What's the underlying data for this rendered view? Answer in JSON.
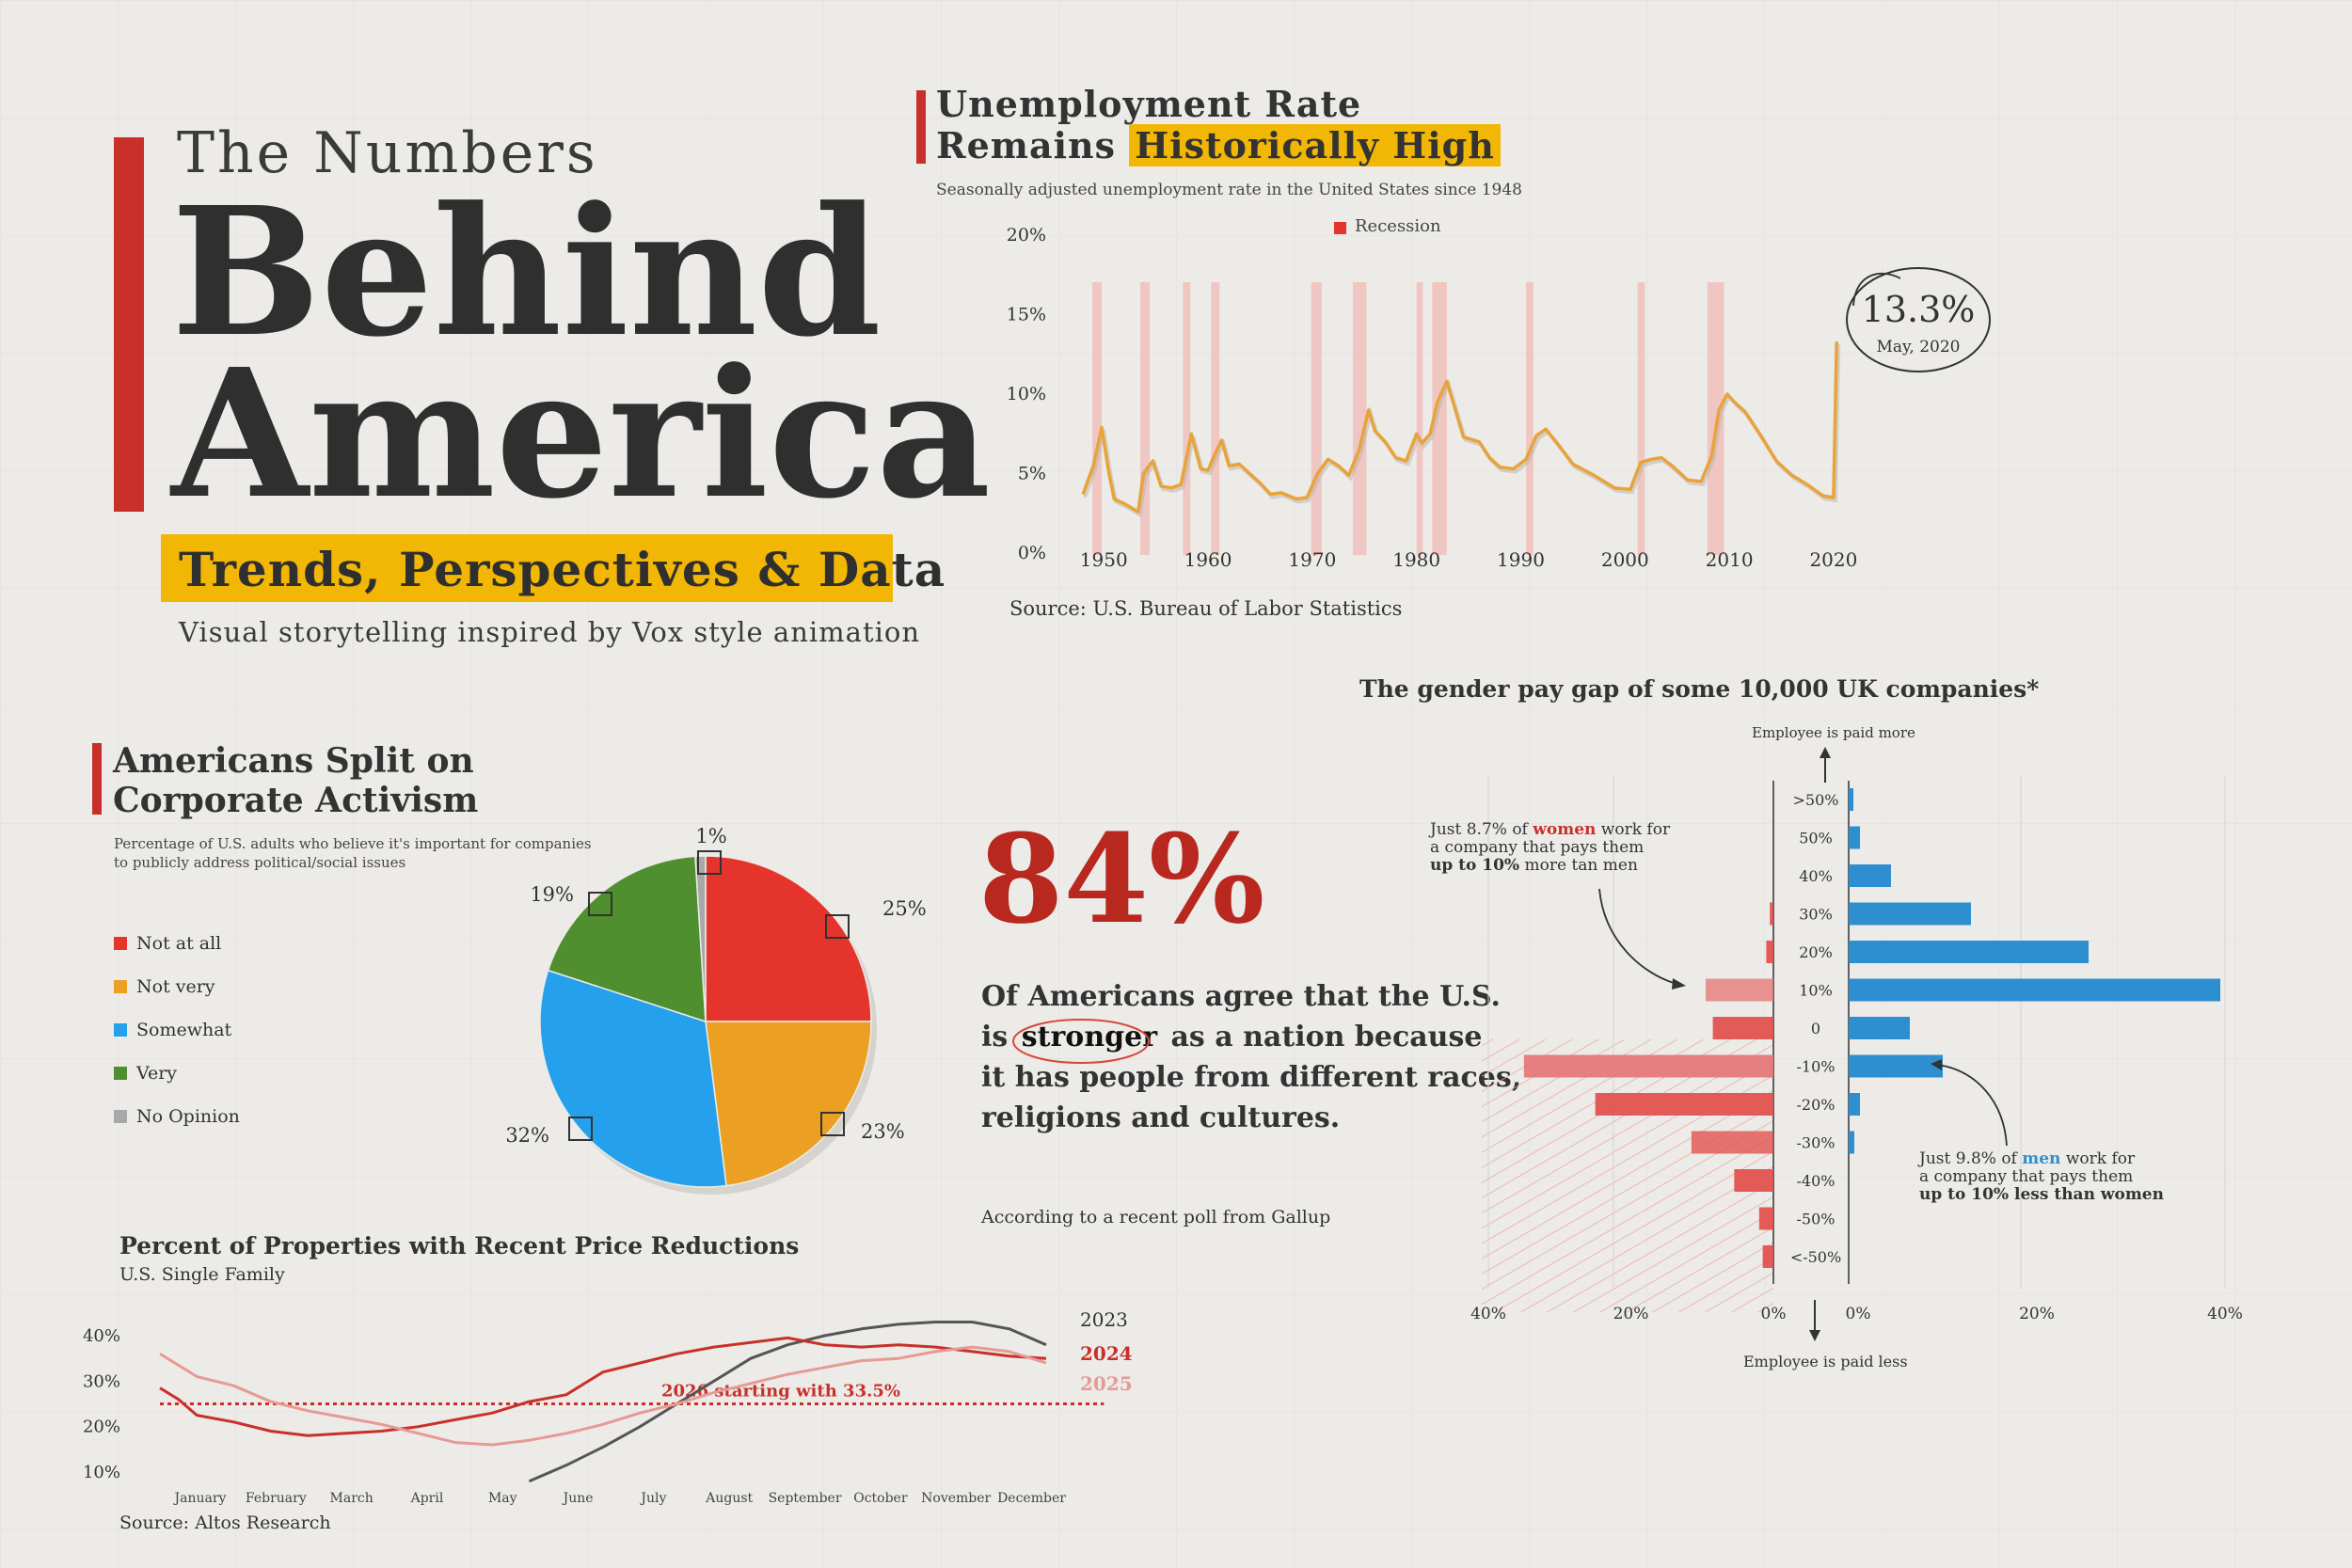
{
  "header": {
    "kicker": "The Numbers",
    "title_line1": "Behind",
    "title_line2": "America",
    "subtitle": "Trends, Perspectives & Data",
    "tagline": "Visual storytelling inspired by Vox style animation"
  },
  "colors": {
    "accent_red": "#c8302a",
    "highlight_yellow": "#f2b705",
    "line_orange": "#e8a33a",
    "recession_pink": "#f0b9b6",
    "blue": "#2e8fd0"
  },
  "unemployment": {
    "title_line1": "Unemployment Rate",
    "title_line2_plain": "Remains",
    "title_line2_highlight": "Historically High",
    "subtitle": "Seasonally adjusted unemployment rate in the United States since 1948",
    "legend": "Recession",
    "source": "Source: U.S. Bureau of Labor Statistics",
    "annotation_value": "13.3%",
    "annotation_label": "May, 2020"
  },
  "activism": {
    "title_line1": "Americans Split on",
    "title_line2": "Corporate Activism",
    "subtitle_line1": "Percentage of U.S. adults who believe it's important for companies",
    "subtitle_line2": "to publicly address political/social issues"
  },
  "stat": {
    "big": "84%",
    "line1": "Of Americans agree that the U.S.",
    "line2_pre": "is",
    "line2_emph": "stronger",
    "line2_post": "as a nation because",
    "line3": "it has people from different races,",
    "line4": "religions and cultures.",
    "source": "According to a recent poll from Gallup"
  },
  "paygap": {
    "title": "The gender pay gap of some 10,000 UK companies*",
    "top_label": "Employee is paid more",
    "bottom_label": "Employee is paid less",
    "note_women_1_pre": "Just 8.7% of",
    "note_women_1_em": "women",
    "note_women_1_post": "work for",
    "note_women_2": "a company that pays them",
    "note_women_3_b": "up to 10%",
    "note_women_3_post": "more tan men",
    "note_men_1_pre": "Just 9.8% of",
    "note_men_1_em": "men",
    "note_men_1_post": "work for",
    "note_men_2": "a company that pays them",
    "note_men_3": "up to 10% less than women"
  },
  "prices": {
    "title": "Percent of Properties with Recent Price Reductions",
    "subtitle": "U.S. Single Family",
    "annotation": "2026 starting with 33.5%",
    "source": "Source: Altos Research"
  },
  "chart_data": [
    {
      "id": "unemployment",
      "type": "line",
      "title": "Unemployment Rate Remains Historically High",
      "ylim": [
        0,
        20
      ],
      "xlim": [
        1947,
        2021
      ],
      "y_ticks": [
        0,
        5,
        10,
        15,
        20
      ],
      "y_tick_labels": [
        "0%",
        "5%",
        "10%",
        "15%",
        "20%"
      ],
      "x_ticks": [
        1950,
        1960,
        1970,
        1980,
        1990,
        2000,
        2010,
        2020
      ],
      "x_tick_labels": [
        "1950",
        "1960",
        "1970",
        "1980",
        "1990",
        "2000",
        "2010",
        "2020"
      ],
      "recessions": [
        [
          1948.9,
          1949.8
        ],
        [
          1953.5,
          1954.4
        ],
        [
          1957.6,
          1958.3
        ],
        [
          1960.3,
          1961.1
        ],
        [
          1969.9,
          1970.9
        ],
        [
          1973.9,
          1975.2
        ],
        [
          1980.0,
          1980.6
        ],
        [
          1981.5,
          1982.9
        ],
        [
          1990.5,
          1991.2
        ],
        [
          2001.2,
          2001.9
        ],
        [
          2007.9,
          2009.5
        ]
      ],
      "series": [
        {
          "name": "Unemployment rate",
          "x": [
            1948,
            1949,
            1949.8,
            1950.5,
            1951,
            1952,
            1953.3,
            1953.8,
            1954.7,
            1955.5,
            1956.5,
            1957.4,
            1958.4,
            1959.3,
            1960,
            1960.5,
            1961.3,
            1962,
            1963,
            1964,
            1965,
            1966,
            1967,
            1968.5,
            1969.5,
            1970.5,
            1971.5,
            1972.5,
            1973.5,
            1974.5,
            1975.4,
            1976,
            1977,
            1978,
            1979,
            1980,
            1980.5,
            1981.3,
            1982,
            1982.9,
            1983.5,
            1984.5,
            1986,
            1987,
            1988,
            1989.3,
            1990.5,
            1991.5,
            1992.4,
            1993.5,
            1995,
            1997,
            1999,
            2000.5,
            2001.5,
            2002.5,
            2003.5,
            2004.5,
            2006,
            2007.3,
            2008.3,
            2009,
            2009.8,
            2010.5,
            2011.5,
            2013,
            2014.5,
            2016,
            2017.5,
            2019,
            2020,
            2020.3
          ],
          "values": [
            3.7,
            5.5,
            7.9,
            5.0,
            3.4,
            3.1,
            2.6,
            5.0,
            5.8,
            4.2,
            4.1,
            4.3,
            7.5,
            5.3,
            5.2,
            6.0,
            7.1,
            5.5,
            5.6,
            5.0,
            4.4,
            3.7,
            3.8,
            3.4,
            3.5,
            5.0,
            5.9,
            5.5,
            4.9,
            6.5,
            9.0,
            7.7,
            7.0,
            6.0,
            5.8,
            7.5,
            6.9,
            7.5,
            9.5,
            10.8,
            9.5,
            7.3,
            7.0,
            6.0,
            5.4,
            5.3,
            5.9,
            7.4,
            7.8,
            6.9,
            5.6,
            4.9,
            4.1,
            4.0,
            5.7,
            5.9,
            6.0,
            5.5,
            4.6,
            4.5,
            6.1,
            9.0,
            10.0,
            9.5,
            8.9,
            7.4,
            5.8,
            4.9,
            4.3,
            3.6,
            3.5,
            13.3
          ]
        }
      ]
    },
    {
      "id": "activism",
      "type": "pie",
      "title": "Americans Split on Corporate Activism",
      "legend_position": "left",
      "labels": [
        "Not at all",
        "Not very",
        "Somewhat",
        "Very",
        "No Opinion"
      ],
      "values": [
        25,
        23,
        32,
        19,
        1
      ],
      "value_labels": [
        "25%",
        "23%",
        "32%",
        "19%",
        "1%"
      ],
      "colors": [
        "#e5342b",
        "#eba024",
        "#25a0ec",
        "#4f8f2f",
        "#a8a8a8"
      ]
    },
    {
      "id": "paygap",
      "type": "bar",
      "title": "The gender pay gap of some 10,000 UK companies*",
      "categories": [
        ">50%",
        "50%",
        "40%",
        "30%",
        "20%",
        "10%",
        "0",
        "-10%",
        "-20%",
        "-30%",
        "-40%",
        "-50%",
        "<-50%"
      ],
      "xlim": [
        0,
        45
      ],
      "x_ticks": [
        0,
        20,
        40
      ],
      "x_tick_labels": [
        "0%",
        "20%",
        "40%"
      ],
      "left_tick_labels": [
        "40%",
        "20%",
        "0%"
      ],
      "series": [
        {
          "values": [
            0,
            0,
            0,
            0.5,
            1,
            9.5,
            8.5,
            35,
            25,
            11.5,
            5.5,
            2,
            1.5
          ]
        },
        {
          "values": [
            0.5,
            1.2,
            4.5,
            13,
            25.5,
            39.5,
            6.5,
            10,
            1.2,
            0.6,
            0,
            0,
            0
          ]
        }
      ]
    },
    {
      "id": "prices",
      "type": "line",
      "title": "Percent of Properties with Recent Price Reductions",
      "ylim": [
        8,
        42
      ],
      "y_ticks": [
        10,
        20,
        30,
        40
      ],
      "y_tick_labels": [
        "10%",
        "20%",
        "30%",
        "40%"
      ],
      "categories": [
        "January",
        "February",
        "March",
        "April",
        "May",
        "June",
        "July",
        "August",
        "September",
        "October",
        "November",
        "December"
      ],
      "series": [
        {
          "name": "2023",
          "x": [
            5,
            5.5,
            6,
            6.5,
            7,
            7.5,
            8,
            8.5,
            9,
            9.5,
            10,
            10.5,
            11,
            11.5,
            12
          ],
          "values": [
            8,
            11.5,
            15.5,
            20,
            25,
            30,
            35,
            38,
            40,
            41.5,
            42.5,
            43,
            43,
            41.5,
            38
          ]
        },
        {
          "name": "2024",
          "x": [
            0,
            0.25,
            0.5,
            1,
            1.5,
            2,
            2.5,
            3,
            3.5,
            4,
            4.5,
            5,
            5.5,
            6,
            6.5,
            7,
            7.5,
            8,
            8.5,
            9,
            9.5,
            10,
            10.5,
            11,
            11.5,
            12
          ],
          "values": [
            28.5,
            26,
            22.5,
            21,
            19,
            18,
            18.5,
            19,
            20,
            21.5,
            23,
            25.5,
            27,
            32,
            34,
            36,
            37.5,
            38.5,
            39.5,
            38,
            37.5,
            38,
            37.5,
            36.5,
            35.5,
            35
          ]
        },
        {
          "name": "2025",
          "x": [
            0,
            0.5,
            1,
            1.5,
            2,
            2.5,
            3,
            3.5,
            4,
            4.5,
            5,
            5.5,
            6,
            6.5,
            7,
            7.5,
            8,
            8.5,
            9,
            9.5,
            10,
            10.5,
            11,
            11.5,
            12
          ],
          "values": [
            36,
            31,
            29,
            25.5,
            23.5,
            22,
            20.5,
            18.5,
            16.5,
            16,
            17,
            18.5,
            20.5,
            23,
            25,
            27.5,
            29.5,
            31.5,
            33,
            34.5,
            35,
            36.5,
            37.5,
            36.5,
            34
          ]
        }
      ],
      "reference_line": {
        "value": 25,
        "label": "2026 starting with 33.5%"
      }
    }
  ]
}
